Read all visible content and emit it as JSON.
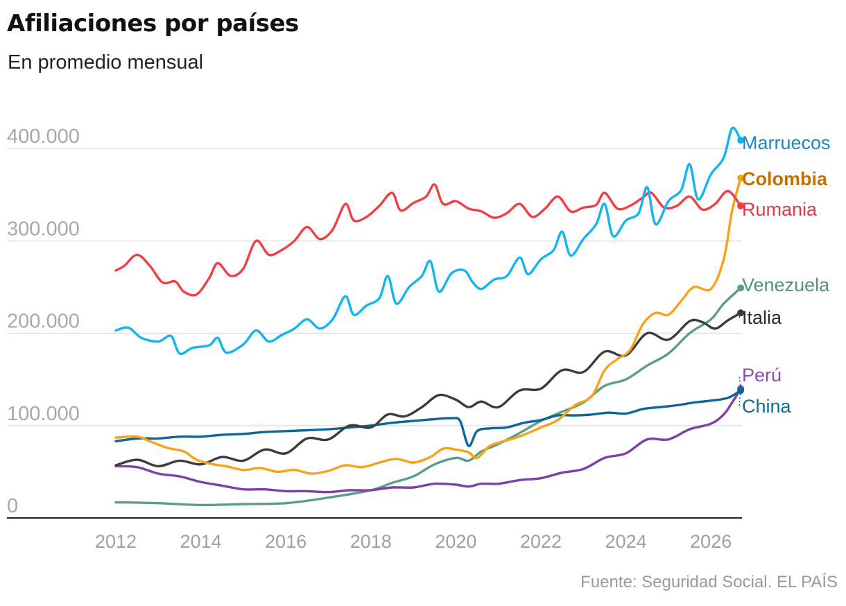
{
  "header": {
    "title": "Afiliaciones por países",
    "subtitle": "En promedio mensual"
  },
  "footer": {
    "source": "Fuente: Seguridad Social. EL PAÍS"
  },
  "chart_data": {
    "type": "line",
    "title": "Afiliaciones por países",
    "subtitle": "En promedio mensual",
    "xlabel": "",
    "ylabel": "",
    "xlim": [
      2011.7,
      2026.9
    ],
    "ylim": [
      0,
      420000
    ],
    "x_ticks": [
      2012,
      2014,
      2016,
      2018,
      2020,
      2022,
      2024,
      2026
    ],
    "x_tick_labels": [
      "2012",
      "2014",
      "2016",
      "2018",
      "2020",
      "2022",
      "2024",
      "2026"
    ],
    "y_ticks": [
      0,
      100000,
      200000,
      300000,
      400000
    ],
    "y_tick_labels": [
      "0",
      "100.000",
      "200.000",
      "300.000",
      "400.000"
    ],
    "grid": "horizontal",
    "legend": "direct labels at right end of lines",
    "series": [
      {
        "name": "Marruecos",
        "color": "#12b5f0",
        "label_color": "#1a86c4",
        "bold": false,
        "points": [
          [
            2012.0,
            203000
          ],
          [
            2012.3,
            206000
          ],
          [
            2012.6,
            195000
          ],
          [
            2013.0,
            191000
          ],
          [
            2013.3,
            197000
          ],
          [
            2013.5,
            178000
          ],
          [
            2013.8,
            184000
          ],
          [
            2014.2,
            187000
          ],
          [
            2014.4,
            195000
          ],
          [
            2014.6,
            179000
          ],
          [
            2015.0,
            188000
          ],
          [
            2015.3,
            203000
          ],
          [
            2015.6,
            191000
          ],
          [
            2015.9,
            198000
          ],
          [
            2016.2,
            205000
          ],
          [
            2016.5,
            215000
          ],
          [
            2016.8,
            205000
          ],
          [
            2017.1,
            215000
          ],
          [
            2017.4,
            240000
          ],
          [
            2017.6,
            220000
          ],
          [
            2017.9,
            230000
          ],
          [
            2018.2,
            238000
          ],
          [
            2018.4,
            262000
          ],
          [
            2018.6,
            232000
          ],
          [
            2018.9,
            250000
          ],
          [
            2019.2,
            262000
          ],
          [
            2019.4,
            278000
          ],
          [
            2019.6,
            245000
          ],
          [
            2019.9,
            265000
          ],
          [
            2020.2,
            268000
          ],
          [
            2020.4,
            255000
          ],
          [
            2020.6,
            248000
          ],
          [
            2020.9,
            258000
          ],
          [
            2021.2,
            262000
          ],
          [
            2021.5,
            282000
          ],
          [
            2021.7,
            264000
          ],
          [
            2022.0,
            280000
          ],
          [
            2022.3,
            290000
          ],
          [
            2022.5,
            310000
          ],
          [
            2022.7,
            284000
          ],
          [
            2023.0,
            302000
          ],
          [
            2023.3,
            318000
          ],
          [
            2023.5,
            340000
          ],
          [
            2023.7,
            305000
          ],
          [
            2024.0,
            322000
          ],
          [
            2024.3,
            330000
          ],
          [
            2024.5,
            358000
          ],
          [
            2024.7,
            318000
          ],
          [
            2025.0,
            343000
          ],
          [
            2025.3,
            355000
          ],
          [
            2025.5,
            383000
          ],
          [
            2025.7,
            345000
          ],
          [
            2026.0,
            372000
          ],
          [
            2026.3,
            390000
          ],
          [
            2026.5,
            422000
          ],
          [
            2026.7,
            409000
          ]
        ]
      },
      {
        "name": "Colombia",
        "color": "#f7a21b",
        "label_color": "#c46f00",
        "bold": true,
        "points": [
          [
            2012.0,
            87000
          ],
          [
            2012.5,
            88000
          ],
          [
            2012.8,
            83000
          ],
          [
            2013.2,
            76000
          ],
          [
            2013.6,
            72000
          ],
          [
            2013.9,
            63000
          ],
          [
            2014.3,
            58000
          ],
          [
            2014.6,
            56000
          ],
          [
            2015.0,
            52000
          ],
          [
            2015.4,
            54000
          ],
          [
            2015.8,
            50000
          ],
          [
            2016.2,
            52000
          ],
          [
            2016.6,
            48000
          ],
          [
            2017.0,
            51000
          ],
          [
            2017.4,
            57000
          ],
          [
            2017.8,
            55000
          ],
          [
            2018.2,
            60000
          ],
          [
            2018.6,
            64000
          ],
          [
            2019.0,
            60000
          ],
          [
            2019.4,
            66000
          ],
          [
            2019.7,
            75000
          ],
          [
            2020.0,
            74000
          ],
          [
            2020.3,
            71000
          ],
          [
            2020.5,
            65000
          ],
          [
            2020.8,
            78000
          ],
          [
            2021.2,
            84000
          ],
          [
            2021.6,
            90000
          ],
          [
            2022.0,
            98000
          ],
          [
            2022.4,
            106000
          ],
          [
            2022.8,
            122000
          ],
          [
            2023.2,
            132000
          ],
          [
            2023.5,
            160000
          ],
          [
            2023.8,
            172000
          ],
          [
            2024.1,
            182000
          ],
          [
            2024.4,
            210000
          ],
          [
            2024.7,
            222000
          ],
          [
            2025.0,
            220000
          ],
          [
            2025.3,
            235000
          ],
          [
            2025.6,
            250000
          ],
          [
            2026.0,
            248000
          ],
          [
            2026.3,
            280000
          ],
          [
            2026.5,
            333000
          ],
          [
            2026.7,
            368000
          ]
        ]
      },
      {
        "name": "Rumania",
        "color": "#ee3f44",
        "label_color": "#e23a42",
        "bold": false,
        "points": [
          [
            2012.0,
            268000
          ],
          [
            2012.2,
            273000
          ],
          [
            2012.5,
            285000
          ],
          [
            2012.8,
            273000
          ],
          [
            2013.1,
            255000
          ],
          [
            2013.4,
            256000
          ],
          [
            2013.6,
            245000
          ],
          [
            2013.9,
            242000
          ],
          [
            2014.2,
            260000
          ],
          [
            2014.4,
            276000
          ],
          [
            2014.7,
            262000
          ],
          [
            2015.0,
            270000
          ],
          [
            2015.3,
            300000
          ],
          [
            2015.6,
            285000
          ],
          [
            2015.9,
            290000
          ],
          [
            2016.2,
            300000
          ],
          [
            2016.5,
            315000
          ],
          [
            2016.8,
            302000
          ],
          [
            2017.1,
            312000
          ],
          [
            2017.4,
            340000
          ],
          [
            2017.6,
            322000
          ],
          [
            2017.9,
            326000
          ],
          [
            2018.2,
            338000
          ],
          [
            2018.5,
            352000
          ],
          [
            2018.7,
            333000
          ],
          [
            2019.0,
            341000
          ],
          [
            2019.3,
            348000
          ],
          [
            2019.5,
            361000
          ],
          [
            2019.7,
            340000
          ],
          [
            2020.0,
            343000
          ],
          [
            2020.3,
            335000
          ],
          [
            2020.6,
            332000
          ],
          [
            2020.9,
            325000
          ],
          [
            2021.2,
            330000
          ],
          [
            2021.5,
            340000
          ],
          [
            2021.8,
            326000
          ],
          [
            2022.1,
            335000
          ],
          [
            2022.4,
            348000
          ],
          [
            2022.7,
            332000
          ],
          [
            2023.0,
            336000
          ],
          [
            2023.3,
            339000
          ],
          [
            2023.5,
            352000
          ],
          [
            2023.8,
            335000
          ],
          [
            2024.1,
            338000
          ],
          [
            2024.4,
            347000
          ],
          [
            2024.6,
            352000
          ],
          [
            2024.9,
            336000
          ],
          [
            2025.2,
            338000
          ],
          [
            2025.5,
            348000
          ],
          [
            2025.8,
            334000
          ],
          [
            2026.1,
            340000
          ],
          [
            2026.4,
            354000
          ],
          [
            2026.7,
            338000
          ]
        ]
      },
      {
        "name": "Venezuela",
        "color": "#5c9e85",
        "label_color": "#4f9478",
        "bold": false,
        "points": [
          [
            2012.0,
            17000
          ],
          [
            2013.0,
            16000
          ],
          [
            2014.0,
            14000
          ],
          [
            2015.0,
            15000
          ],
          [
            2016.0,
            16000
          ],
          [
            2017.0,
            22000
          ],
          [
            2018.0,
            30000
          ],
          [
            2018.5,
            38000
          ],
          [
            2019.0,
            45000
          ],
          [
            2019.5,
            58000
          ],
          [
            2020.0,
            65000
          ],
          [
            2020.3,
            62000
          ],
          [
            2020.6,
            72000
          ],
          [
            2021.0,
            80000
          ],
          [
            2021.5,
            92000
          ],
          [
            2022.0,
            105000
          ],
          [
            2022.5,
            115000
          ],
          [
            2023.0,
            125000
          ],
          [
            2023.5,
            143000
          ],
          [
            2024.0,
            150000
          ],
          [
            2024.5,
            165000
          ],
          [
            2025.0,
            178000
          ],
          [
            2025.5,
            200000
          ],
          [
            2026.0,
            215000
          ],
          [
            2026.3,
            232000
          ],
          [
            2026.7,
            249000
          ]
        ]
      },
      {
        "name": "Italia",
        "color": "#3c3c3c",
        "label_color": "#2b2b2b",
        "bold": false,
        "points": [
          [
            2012.0,
            57000
          ],
          [
            2012.5,
            63000
          ],
          [
            2013.0,
            56000
          ],
          [
            2013.5,
            62000
          ],
          [
            2014.0,
            58000
          ],
          [
            2014.5,
            66000
          ],
          [
            2015.0,
            62000
          ],
          [
            2015.5,
            74000
          ],
          [
            2016.0,
            70000
          ],
          [
            2016.5,
            86000
          ],
          [
            2017.0,
            85000
          ],
          [
            2017.5,
            100000
          ],
          [
            2018.0,
            98000
          ],
          [
            2018.4,
            112000
          ],
          [
            2018.8,
            110000
          ],
          [
            2019.2,
            120000
          ],
          [
            2019.6,
            133000
          ],
          [
            2020.0,
            128000
          ],
          [
            2020.3,
            120000
          ],
          [
            2020.6,
            126000
          ],
          [
            2021.0,
            120000
          ],
          [
            2021.5,
            138000
          ],
          [
            2022.0,
            140000
          ],
          [
            2022.5,
            160000
          ],
          [
            2023.0,
            158000
          ],
          [
            2023.5,
            180000
          ],
          [
            2024.0,
            176000
          ],
          [
            2024.5,
            200000
          ],
          [
            2025.0,
            193000
          ],
          [
            2025.5,
            213000
          ],
          [
            2025.8,
            212000
          ],
          [
            2026.1,
            205000
          ],
          [
            2026.4,
            214000
          ],
          [
            2026.7,
            222000
          ]
        ]
      },
      {
        "name": "Perú",
        "color": "#7d3fa8",
        "label_color": "#8a4db6",
        "bold": false,
        "points": [
          [
            2012.0,
            56000
          ],
          [
            2012.5,
            55000
          ],
          [
            2013.0,
            48000
          ],
          [
            2013.5,
            45000
          ],
          [
            2014.0,
            39000
          ],
          [
            2014.5,
            35000
          ],
          [
            2015.0,
            31000
          ],
          [
            2015.5,
            31000
          ],
          [
            2016.0,
            29000
          ],
          [
            2016.5,
            29000
          ],
          [
            2017.0,
            28000
          ],
          [
            2017.5,
            30000
          ],
          [
            2018.0,
            30000
          ],
          [
            2018.5,
            33000
          ],
          [
            2019.0,
            33000
          ],
          [
            2019.5,
            37000
          ],
          [
            2020.0,
            36000
          ],
          [
            2020.3,
            34000
          ],
          [
            2020.6,
            37000
          ],
          [
            2021.0,
            37000
          ],
          [
            2021.5,
            41000
          ],
          [
            2022.0,
            43000
          ],
          [
            2022.5,
            49000
          ],
          [
            2023.0,
            53000
          ],
          [
            2023.5,
            65000
          ],
          [
            2024.0,
            70000
          ],
          [
            2024.5,
            85000
          ],
          [
            2025.0,
            85000
          ],
          [
            2025.5,
            96000
          ],
          [
            2026.0,
            102000
          ],
          [
            2026.3,
            112000
          ],
          [
            2026.5,
            125000
          ],
          [
            2026.7,
            140000
          ]
        ]
      },
      {
        "name": "China",
        "color": "#0e6696",
        "label_color": "#126a96",
        "bold": false,
        "points": [
          [
            2012.0,
            83000
          ],
          [
            2012.5,
            86000
          ],
          [
            2013.0,
            86000
          ],
          [
            2013.5,
            88000
          ],
          [
            2014.0,
            88000
          ],
          [
            2014.5,
            90000
          ],
          [
            2015.0,
            91000
          ],
          [
            2015.5,
            93000
          ],
          [
            2016.0,
            94000
          ],
          [
            2016.5,
            95000
          ],
          [
            2017.0,
            96000
          ],
          [
            2017.5,
            98000
          ],
          [
            2018.0,
            100000
          ],
          [
            2018.5,
            103000
          ],
          [
            2019.0,
            105000
          ],
          [
            2019.5,
            107000
          ],
          [
            2019.9,
            108000
          ],
          [
            2020.1,
            105000
          ],
          [
            2020.3,
            78000
          ],
          [
            2020.5,
            94000
          ],
          [
            2020.8,
            97000
          ],
          [
            2021.2,
            98000
          ],
          [
            2021.6,
            103000
          ],
          [
            2022.0,
            106000
          ],
          [
            2022.4,
            111000
          ],
          [
            2022.8,
            111000
          ],
          [
            2023.2,
            112000
          ],
          [
            2023.6,
            114000
          ],
          [
            2024.0,
            113000
          ],
          [
            2024.4,
            118000
          ],
          [
            2024.8,
            120000
          ],
          [
            2025.2,
            122000
          ],
          [
            2025.6,
            125000
          ],
          [
            2026.0,
            127000
          ],
          [
            2026.4,
            130000
          ],
          [
            2026.7,
            138000
          ]
        ]
      }
    ]
  }
}
